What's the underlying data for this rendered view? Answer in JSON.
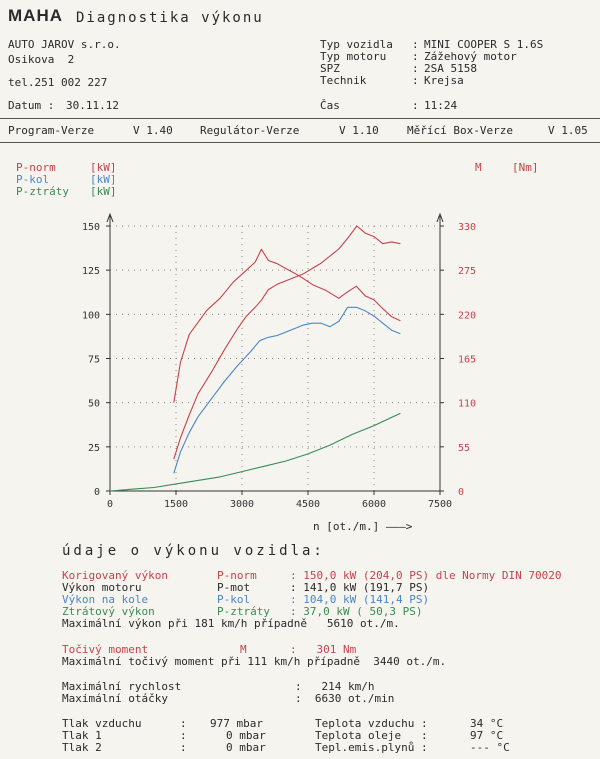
{
  "header": {
    "logo": "MAHA",
    "title": "Diagnostika výkonu"
  },
  "company": {
    "name": "AUTO JAROV s.r.o.",
    "street": "Osikova  2",
    "phone": "tel.251 002 227",
    "date_label": "Datum :",
    "date": "30.11.12"
  },
  "vehicle": {
    "rows": [
      {
        "label": "Typ vozidla",
        "value": "MINI COOPER S 1.6S"
      },
      {
        "label": "Typ motoru",
        "value": "Zážehový motor"
      },
      {
        "label": "SPZ",
        "value": "2SA 5158"
      },
      {
        "label": "Technik",
        "value": "Krejsa"
      }
    ],
    "time_label": "Čas",
    "time": "11:24"
  },
  "versions": {
    "program_label": "Program-Verze",
    "program": "V 1.40",
    "regulator_label": "Regulátor-Verze",
    "regulator": "V 1.10",
    "box_label": "Měřící Box-Verze",
    "box": "V 1.05"
  },
  "legend": {
    "p_norm": "P-norm",
    "p_kol": "P-kol",
    "p_ztraty": "P-ztráty",
    "unit_kw": "[kW]",
    "m": "M",
    "unit_nm": "[Nm]"
  },
  "chart_data": {
    "type": "line",
    "xlabel": "n [ot./m.] ———>",
    "x_ticks": [
      0,
      1500,
      3000,
      4500,
      6000,
      7500
    ],
    "y_left_ticks": [
      0,
      25,
      50,
      75,
      100,
      125,
      150
    ],
    "y_right_ticks": [
      0,
      55,
      110,
      165,
      220,
      275,
      330
    ],
    "xlim": [
      0,
      7500
    ],
    "ylim_left": [
      0,
      150
    ],
    "ylim_right": [
      0,
      330
    ],
    "grid": true,
    "series": [
      {
        "name": "P-norm",
        "color": "#c8424c",
        "axis": "left",
        "x": [
          1450,
          1600,
          1800,
          2000,
          2300,
          2600,
          2900,
          3100,
          3300,
          3440,
          3600,
          3800,
          4000,
          4200,
          4400,
          4600,
          4800,
          5000,
          5200,
          5400,
          5610,
          5800,
          6000,
          6200,
          6400,
          6600
        ],
        "y": [
          18,
          30,
          43,
          55,
          67,
          80,
          92,
          99,
          104,
          108,
          114,
          117,
          119,
          121,
          123,
          126,
          129,
          133,
          137,
          143,
          150,
          146,
          144,
          140,
          141,
          140
        ]
      },
      {
        "name": "P-kol",
        "color": "#4a86c8",
        "axis": "left",
        "x": [
          1450,
          1600,
          1800,
          2000,
          2300,
          2600,
          2900,
          3200,
          3400,
          3600,
          3800,
          4000,
          4200,
          4400,
          4600,
          4800,
          5000,
          5200,
          5400,
          5600,
          5800,
          6000,
          6200,
          6400,
          6600
        ],
        "y": [
          10,
          22,
          33,
          42,
          52,
          62,
          71,
          79,
          85,
          87,
          88,
          90,
          92,
          94,
          95,
          95,
          93,
          96,
          104,
          104,
          102,
          99,
          95,
          91,
          89
        ]
      },
      {
        "name": "M",
        "color": "#c8424c",
        "axis": "right",
        "x": [
          1450,
          1600,
          1800,
          2000,
          2200,
          2500,
          2800,
          3100,
          3300,
          3440,
          3600,
          3800,
          4000,
          4300,
          4600,
          4900,
          5200,
          5400,
          5600,
          5800,
          6000,
          6200,
          6400,
          6600
        ],
        "y": [
          110,
          160,
          195,
          210,
          225,
          240,
          260,
          275,
          285,
          301,
          287,
          283,
          277,
          268,
          257,
          250,
          240,
          248,
          255,
          243,
          238,
          227,
          217,
          212
        ]
      },
      {
        "name": "P-ztráty",
        "color": "#3a8a55",
        "axis": "left",
        "x": [
          0,
          500,
          1000,
          1500,
          2000,
          2500,
          3000,
          3500,
          4000,
          4500,
          5000,
          5500,
          6000,
          6600
        ],
        "y": [
          0,
          1,
          2,
          4,
          6,
          8,
          11,
          14,
          17,
          21,
          26,
          32,
          37,
          44
        ]
      }
    ]
  },
  "summary": {
    "heading": "údaje o výkonu vozidla:",
    "rows": [
      {
        "label": "Korigovaný výkon",
        "symbol": "P-norm",
        "value": ": 150,0 kW (204,0 PS) dle Normy DIN 70020"
      },
      {
        "label": "Výkon motoru",
        "symbol": "P-mot",
        "value": ": 141,0 kW (191,7 PS)"
      },
      {
        "label": "Výkon na kole",
        "symbol": "P-kol",
        "value": ": 104,0 kW (141,4 PS)"
      },
      {
        "label": "Ztrátový výkon",
        "symbol": "P-ztráty",
        "value": ": 37,0 kW ( 50,3 PS)"
      }
    ],
    "max_power": "Maximální výkon při 181 km/h případně   5610 ot./m.",
    "torque_label": "Točivý moment",
    "torque_symbol": "M",
    "torque_value": ":   301 Nm",
    "max_torque": "Maximální točivý moment při 111 km/h případně  3440 ot./m.",
    "max_speed_label": "Maximální rychlost",
    "max_speed": ":   214 km/h",
    "max_rpm_label": "Maximální otáčky",
    "max_rpm": ":  6630 ot./min"
  },
  "conditions": {
    "left": [
      {
        "label": "Tlak vzduchu",
        "value": "977 mbar"
      },
      {
        "label": "Tlak 1",
        "value": "0 mbar"
      },
      {
        "label": "Tlak 2",
        "value": "0 mbar"
      }
    ],
    "right": [
      {
        "label": "Teplota vzduchu :",
        "value": "34 °C"
      },
      {
        "label": "Teplota oleje   :",
        "value": "97 °C"
      },
      {
        "label": "Tepl.emis.plynů :",
        "value": "--- °C"
      }
    ]
  }
}
